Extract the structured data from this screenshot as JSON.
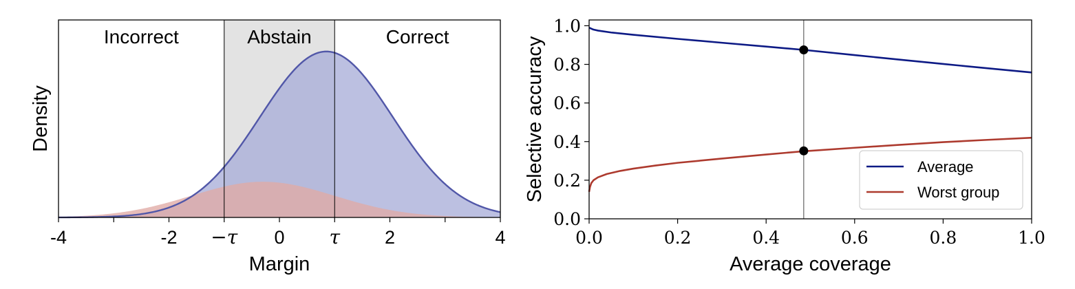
{
  "chart_data": [
    {
      "type": "area",
      "xlabel": "Margin",
      "ylabel": "Density",
      "xlim": [
        -4,
        4
      ],
      "ylim": [
        0,
        1.19
      ],
      "xtick_labels": [
        {
          "value": -4,
          "label": "-4"
        },
        {
          "value": -2,
          "label": "-2"
        },
        {
          "value": -1,
          "label": "−τ"
        },
        {
          "value": 0,
          "label": "0"
        },
        {
          "value": 1,
          "label": "τ"
        },
        {
          "value": 2,
          "label": "2"
        },
        {
          "value": 4,
          "label": "4"
        }
      ],
      "minor_xticks": [
        -3,
        3
      ],
      "regions": [
        {
          "label": "Incorrect",
          "x": [
            -4,
            -1
          ],
          "shaded": false
        },
        {
          "label": "Abstain",
          "x": [
            -1,
            1
          ],
          "shaded": true,
          "color": "#e3e3e3"
        },
        {
          "label": "Correct",
          "x": [
            1,
            4
          ],
          "shaded": false
        }
      ],
      "series": [
        {
          "mean": 0.85,
          "sd": 1.2,
          "peak": 1.0,
          "fill": "#a9aed9",
          "line": "#5157a8"
        },
        {
          "mean": -0.3,
          "sd": 1.3,
          "peak": 0.215,
          "fill": "#e0aaa5",
          "line": null
        }
      ]
    },
    {
      "type": "line",
      "xlabel": "Average coverage",
      "ylabel": "Selective accuracy",
      "xlim": [
        0,
        1
      ],
      "ylim": [
        0,
        1.03
      ],
      "xticks": [
        "0.0",
        "0.2",
        "0.4",
        "0.6",
        "0.8",
        "1.0"
      ],
      "yticks": [
        "0.0",
        "0.2",
        "0.4",
        "0.6",
        "0.8",
        "1.0"
      ],
      "vline_x": 0.485,
      "series": [
        {
          "name": "Average",
          "color": "#0d1a85",
          "x": [
            0,
            0.005,
            0.01,
            0.02,
            0.05,
            0.1,
            0.2,
            0.3,
            0.4,
            0.485,
            0.6,
            0.7,
            0.8,
            0.9,
            1.0
          ],
          "y": [
            0.99,
            0.985,
            0.98,
            0.975,
            0.965,
            0.953,
            0.932,
            0.912,
            0.892,
            0.875,
            0.848,
            0.825,
            0.802,
            0.78,
            0.758
          ]
        },
        {
          "name": "Worst group",
          "color": "#ad3a2e",
          "x": [
            0,
            0.002,
            0.005,
            0.01,
            0.02,
            0.04,
            0.07,
            0.1,
            0.15,
            0.2,
            0.3,
            0.4,
            0.485,
            0.6,
            0.7,
            0.8,
            0.9,
            1.0
          ],
          "y": [
            0.14,
            0.165,
            0.185,
            0.2,
            0.215,
            0.232,
            0.248,
            0.26,
            0.276,
            0.29,
            0.312,
            0.333,
            0.35,
            0.368,
            0.383,
            0.397,
            0.409,
            0.42
          ]
        }
      ],
      "points": [
        {
          "x": 0.485,
          "y": 0.875
        },
        {
          "x": 0.485,
          "y": 0.352
        }
      ],
      "legend": {
        "placement": "lower-right"
      }
    }
  ]
}
